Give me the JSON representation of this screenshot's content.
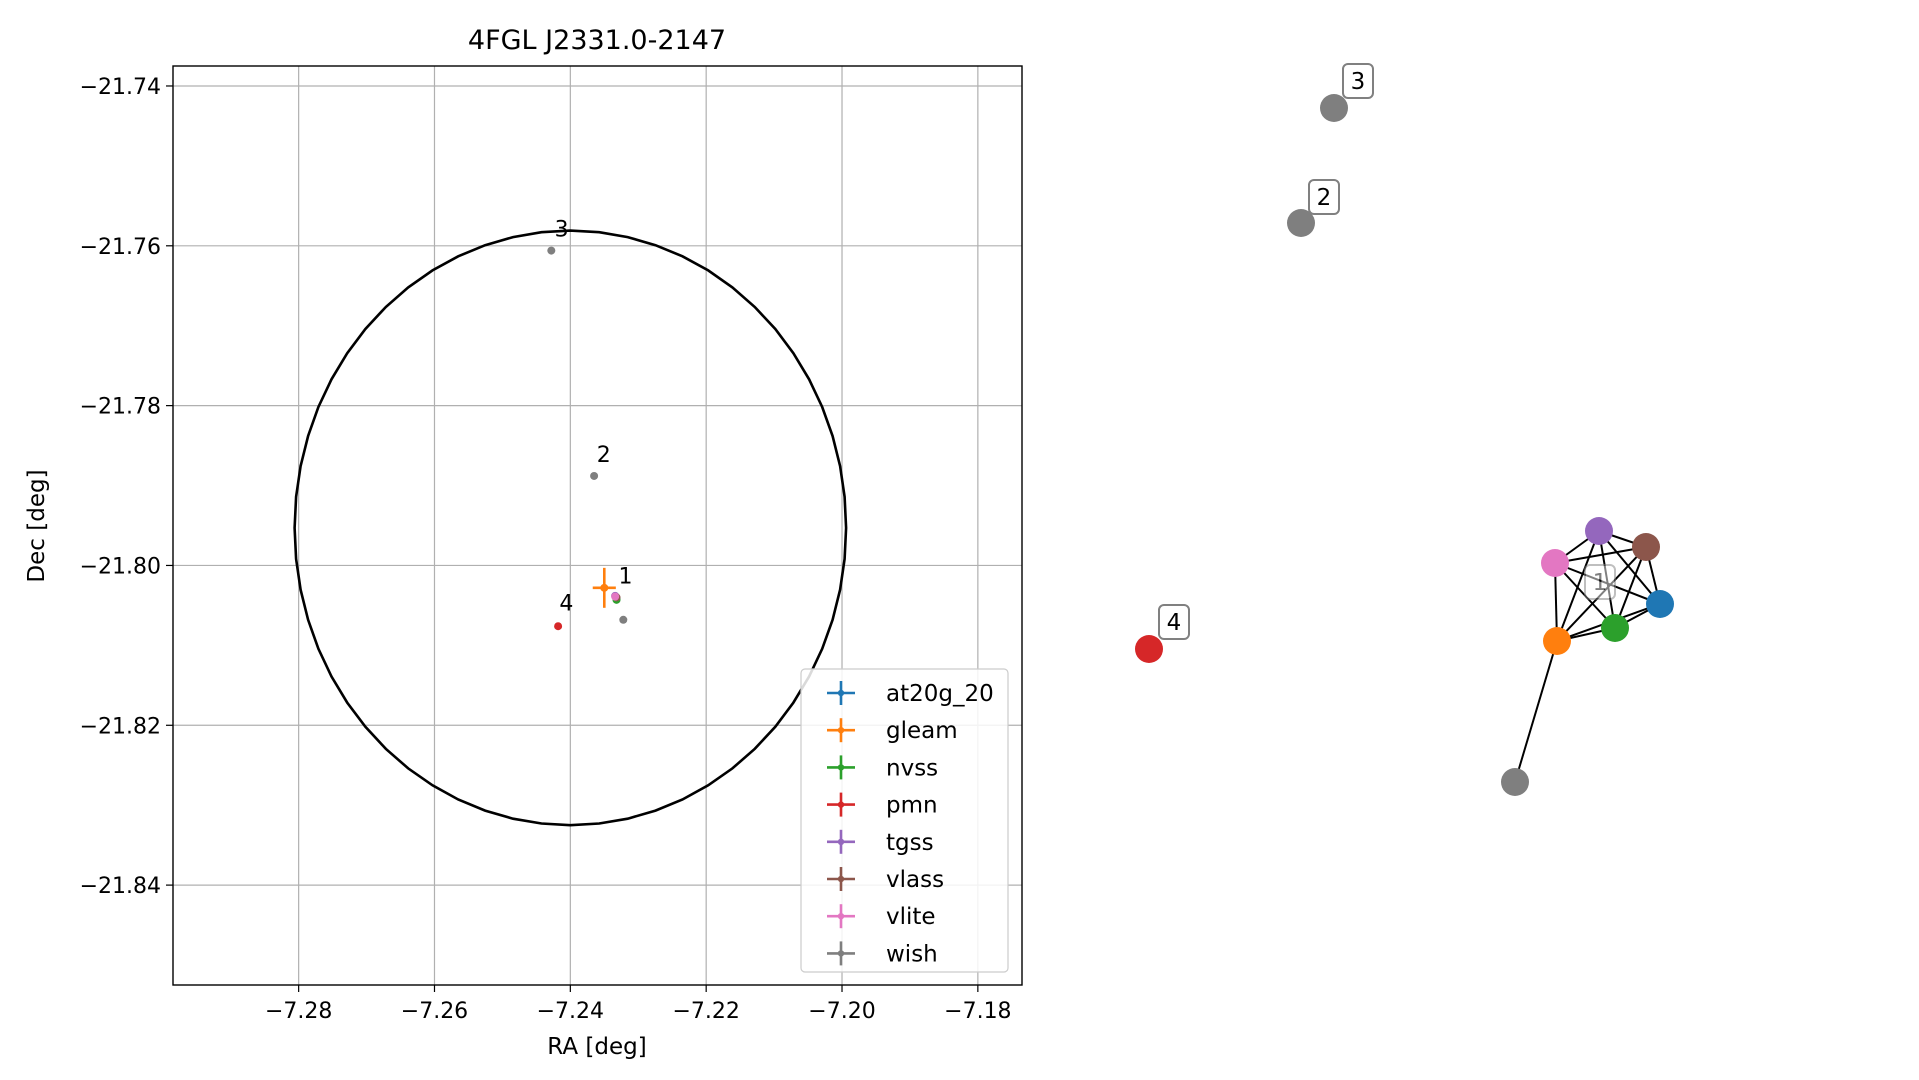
{
  "chart_data": [
    {
      "type": "scatter",
      "title": "4FGL J2331.0-2147",
      "xlabel": "RA [deg]",
      "ylabel": "Dec [deg]",
      "xlim": [
        -7.2985,
        -7.1735
      ],
      "ylim": [
        -21.8525,
        -21.7375
      ],
      "xticks": [
        -7.28,
        -7.26,
        -7.24,
        -7.22,
        -7.2,
        -7.18
      ],
      "xtick_labels": [
        "−7.28",
        "−7.26",
        "−7.24",
        "−7.22",
        "−7.20",
        "−7.18"
      ],
      "yticks": [
        -21.74,
        -21.76,
        -21.78,
        -21.8,
        -21.82,
        -21.84
      ],
      "ytick_labels": [
        "−21.74",
        "−21.76",
        "−21.78",
        "−21.80",
        "−21.82",
        "−21.84"
      ],
      "grid": true,
      "legend_position": "lower-right",
      "ellipse": {
        "center": [
          -7.24,
          -21.7953
        ],
        "ra_radius": 0.0406,
        "dec_radius": 0.0372
      },
      "series": [
        {
          "name": "at20g_20",
          "color": "#1f77b4",
          "points": [
            {
              "x": -7.2332,
              "y": -21.8042
            }
          ]
        },
        {
          "name": "gleam",
          "color": "#ff7f0e",
          "points": [
            {
              "x": -7.235,
              "y": -21.8028,
              "xerr": 0.0017,
              "yerr": 0.0025
            }
          ]
        },
        {
          "name": "nvss",
          "color": "#2ca02c",
          "points": [
            {
              "x": -7.2332,
              "y": -21.8043
            }
          ]
        },
        {
          "name": "pmn",
          "color": "#d62728",
          "points": [
            {
              "x": -7.2418,
              "y": -21.8076
            }
          ]
        },
        {
          "name": "tgss",
          "color": "#9467bd",
          "points": [
            {
              "x": -7.2334,
              "y": -21.8038
            }
          ]
        },
        {
          "name": "vlass",
          "color": "#8c564b",
          "points": [
            {
              "x": -7.2332,
              "y": -21.804
            }
          ]
        },
        {
          "name": "vlite",
          "color": "#e377c2",
          "points": [
            {
              "x": -7.2334,
              "y": -21.8039
            }
          ]
        },
        {
          "name": "wish",
          "color": "#7f7f7f",
          "points": [
            {
              "x": -7.2428,
              "y": -21.7606
            },
            {
              "x": -7.2365,
              "y": -21.7888
            },
            {
              "x": -7.2322,
              "y": -21.8068
            }
          ]
        }
      ],
      "annotations": [
        {
          "text": "1",
          "x": -7.2338,
          "y": -21.803
        },
        {
          "text": "2",
          "x": -7.237,
          "y": -21.7878
        },
        {
          "text": "3",
          "x": -7.2432,
          "y": -21.7596
        },
        {
          "text": "4",
          "x": -7.2425,
          "y": -21.8064
        }
      ]
    },
    {
      "type": "network",
      "nodes": [
        {
          "id": "at20g_20",
          "color": "#1f77b4"
        },
        {
          "id": "gleam",
          "color": "#ff7f0e"
        },
        {
          "id": "nvss",
          "color": "#2ca02c"
        },
        {
          "id": "tgss",
          "color": "#9467bd"
        },
        {
          "id": "vlass",
          "color": "#8c564b"
        },
        {
          "id": "vlite",
          "color": "#e377c2"
        },
        {
          "id": "wish_1",
          "color": "#7f7f7f"
        },
        {
          "id": "pmn",
          "color": "#d62728"
        },
        {
          "id": "wish_2",
          "color": "#7f7f7f"
        },
        {
          "id": "wish_3",
          "color": "#7f7f7f"
        }
      ],
      "edges": [
        [
          "vlite",
          "tgss"
        ],
        [
          "vlite",
          "vlass"
        ],
        [
          "vlite",
          "at20g_20"
        ],
        [
          "vlite",
          "nvss"
        ],
        [
          "vlite",
          "gleam"
        ],
        [
          "tgss",
          "vlass"
        ],
        [
          "tgss",
          "at20g_20"
        ],
        [
          "tgss",
          "nvss"
        ],
        [
          "tgss",
          "gleam"
        ],
        [
          "vlass",
          "at20g_20"
        ],
        [
          "vlass",
          "nvss"
        ],
        [
          "vlass",
          "gleam"
        ],
        [
          "at20g_20",
          "nvss"
        ],
        [
          "at20g_20",
          "gleam"
        ],
        [
          "nvss",
          "gleam"
        ],
        [
          "gleam",
          "wish_1"
        ]
      ],
      "labels": [
        {
          "text": "1"
        },
        {
          "text": "2"
        },
        {
          "text": "3"
        },
        {
          "text": "4"
        }
      ]
    }
  ]
}
